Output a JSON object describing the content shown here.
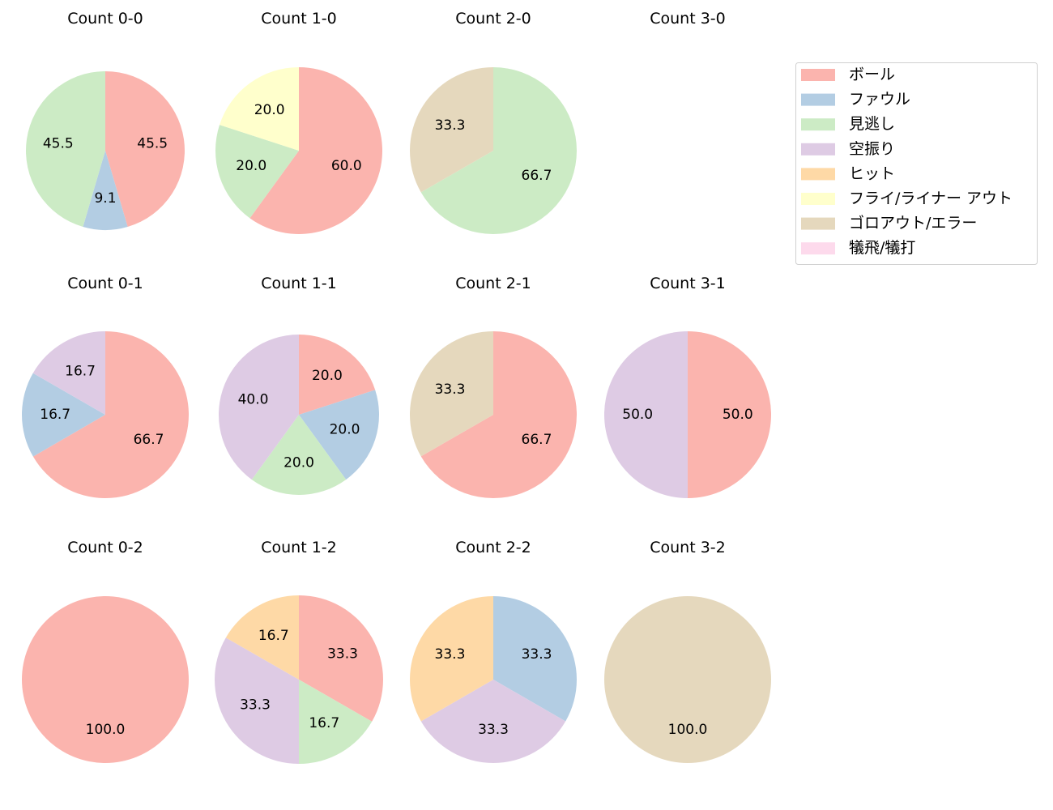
{
  "chart_data": {
    "type": "pie",
    "categories": [
      "ボール",
      "ファウル",
      "見逃し",
      "空振り",
      "ヒット",
      "フライ/ライナー アウト",
      "ゴロアウト/エラー",
      "犠飛/犠打"
    ],
    "colors": [
      "#fbb4ae",
      "#b3cde3",
      "#ccebc5",
      "#decbe4",
      "#fed9a6",
      "#ffffcc",
      "#e5d8bd",
      "#fddaec"
    ],
    "legend_position": "top-right",
    "start": "top",
    "direction": "clockwise",
    "charts": [
      {
        "title": "Count 0-0",
        "values": [
          45.5,
          9.1,
          45.5,
          0,
          0,
          0,
          0,
          0
        ]
      },
      {
        "title": "Count 1-0",
        "values": [
          60.0,
          0,
          20.0,
          0,
          0,
          20.0,
          0,
          0
        ]
      },
      {
        "title": "Count 2-0",
        "values": [
          0,
          0,
          66.7,
          0,
          0,
          0,
          33.3,
          0
        ]
      },
      {
        "title": "Count 3-0",
        "values": [
          0,
          0,
          0,
          0,
          0,
          0,
          0,
          0
        ]
      },
      {
        "title": "Count 0-1",
        "values": [
          66.7,
          16.7,
          0,
          16.7,
          0,
          0,
          0,
          0
        ]
      },
      {
        "title": "Count 1-1",
        "values": [
          20.0,
          20.0,
          20.0,
          40.0,
          0,
          0,
          0,
          0
        ]
      },
      {
        "title": "Count 2-1",
        "values": [
          66.7,
          0,
          0,
          0,
          0,
          0,
          33.3,
          0
        ]
      },
      {
        "title": "Count 3-1",
        "values": [
          50.0,
          0,
          0,
          50.0,
          0,
          0,
          0,
          0
        ]
      },
      {
        "title": "Count 0-2",
        "values": [
          100.0,
          0,
          0,
          0,
          0,
          0,
          0,
          0
        ]
      },
      {
        "title": "Count 1-2",
        "values": [
          33.3,
          0,
          16.7,
          33.3,
          16.7,
          0,
          0,
          0
        ]
      },
      {
        "title": "Count 2-2",
        "values": [
          0,
          33.3,
          0,
          33.3,
          33.3,
          0,
          0,
          0
        ]
      },
      {
        "title": "Count 3-2",
        "values": [
          0,
          0,
          0,
          0,
          0,
          0,
          100.0,
          0
        ]
      }
    ]
  }
}
